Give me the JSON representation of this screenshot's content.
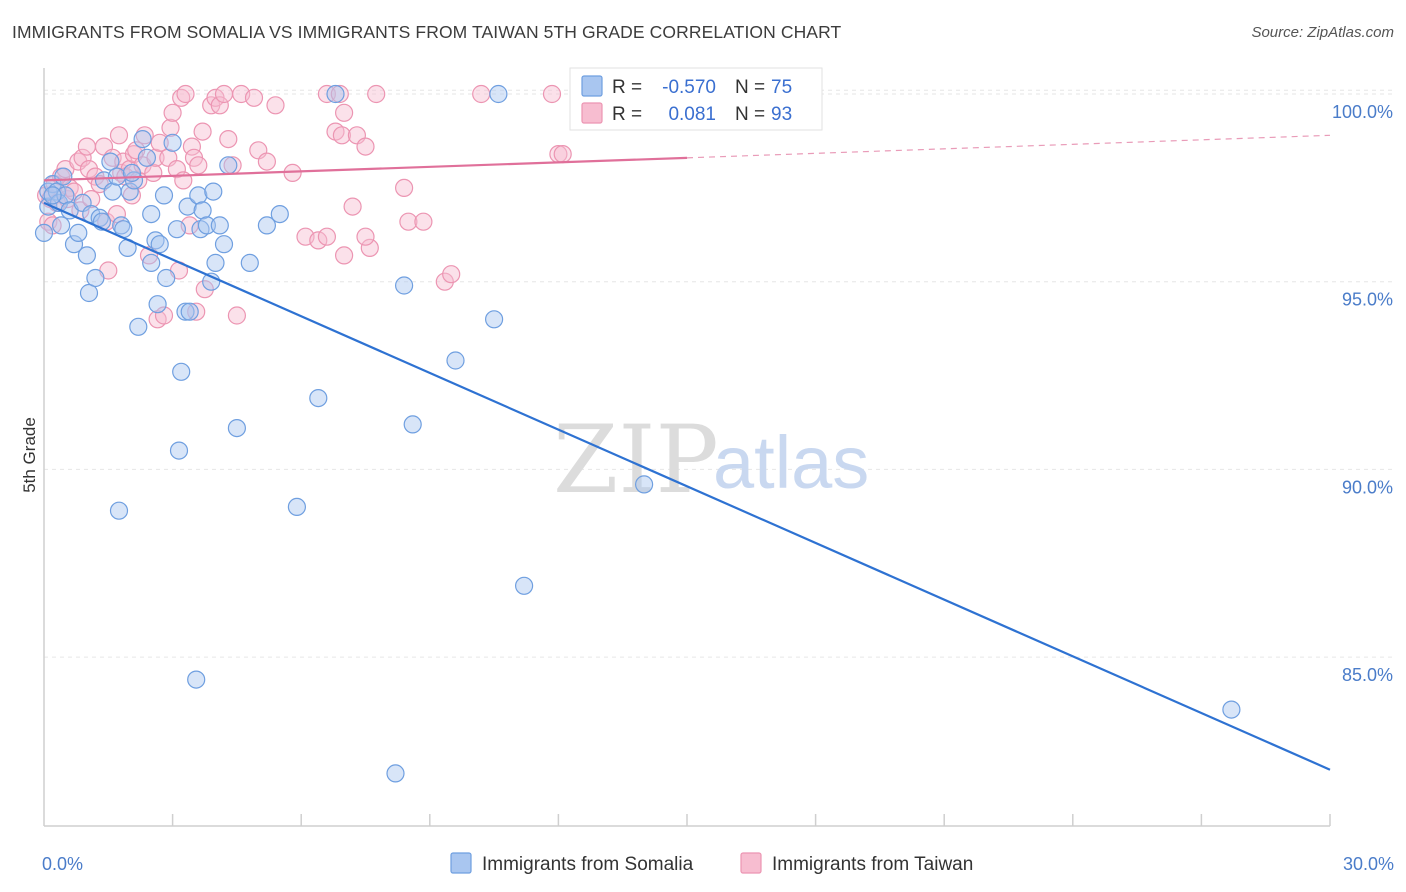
{
  "title": "IMMIGRANTS FROM SOMALIA VS IMMIGRANTS FROM TAIWAN 5TH GRADE CORRELATION CHART",
  "source": "Source: ZipAtlas.com",
  "watermark": {
    "part1": "ZIP",
    "part2": "atlas"
  },
  "stats": {
    "somalia": {
      "r_label": "R =",
      "r_value": "-0.570",
      "n_label": "N =",
      "n_value": "75"
    },
    "taiwan": {
      "r_label": "R =",
      "r_value": "0.081",
      "n_label": "N =",
      "n_value": "93"
    }
  },
  "legend": {
    "somalia": "Immigrants from Somalia",
    "taiwan": "Immigrants from Taiwan"
  },
  "colors": {
    "somalia_fill": "#a9c6f0",
    "somalia_stroke": "#6f9fe0",
    "somalia_line": "#2e72d2",
    "taiwan_fill": "#f7bdd0",
    "taiwan_stroke": "#ec95b2",
    "taiwan_line": "#e0709a",
    "tick_text": "#4a7cc9",
    "grid": "#e6e6e6"
  },
  "chart_data": {
    "type": "scatter",
    "xlabel": "",
    "ylabel": "5th Grade",
    "xlim": [
      0,
      30
    ],
    "ylim": [
      80.5,
      100.8
    ],
    "x_tick_labels": [
      {
        "x": 0,
        "label": "0.0%"
      },
      {
        "x": 30,
        "label": "30.0%"
      }
    ],
    "x_minor_ticks": [
      3,
      6,
      9,
      12,
      15,
      18,
      21,
      24,
      27,
      30
    ],
    "y_ticks": [
      {
        "y": 100,
        "label": "100.0%"
      },
      {
        "y": 95,
        "label": "95.0%"
      },
      {
        "y": 90,
        "label": "90.0%"
      },
      {
        "y": 85,
        "label": "85.0%"
      }
    ],
    "grid": true,
    "legend_position": "bottom-center",
    "series": [
      {
        "name": "Immigrants from Somalia",
        "trend": {
          "x0": 0,
          "y0": 97.1,
          "x1": 30,
          "y1": 82.0,
          "solid_until": 30
        },
        "points": [
          [
            0.0,
            96.3
          ],
          [
            0.1,
            97.0
          ],
          [
            0.1,
            97.4
          ],
          [
            0.2,
            97.6
          ],
          [
            0.3,
            97.4
          ],
          [
            0.35,
            97.1
          ],
          [
            0.4,
            96.5
          ],
          [
            0.45,
            97.8
          ],
          [
            0.5,
            97.3
          ],
          [
            0.6,
            96.9
          ],
          [
            0.7,
            96.0
          ],
          [
            0.8,
            96.3
          ],
          [
            0.9,
            97.1
          ],
          [
            1.0,
            95.7
          ],
          [
            1.05,
            94.7
          ],
          [
            1.1,
            96.8
          ],
          [
            1.2,
            95.1
          ],
          [
            1.3,
            96.7
          ],
          [
            1.4,
            97.7
          ],
          [
            1.55,
            98.2
          ],
          [
            1.6,
            97.4
          ],
          [
            1.7,
            97.8
          ],
          [
            1.75,
            88.9
          ],
          [
            1.8,
            96.5
          ],
          [
            1.85,
            96.4
          ],
          [
            1.95,
            95.9
          ],
          [
            2.0,
            97.4
          ],
          [
            2.1,
            97.7
          ],
          [
            2.2,
            93.8
          ],
          [
            2.3,
            98.8
          ],
          [
            2.4,
            98.3
          ],
          [
            2.5,
            95.5
          ],
          [
            2.5,
            96.8
          ],
          [
            2.6,
            96.1
          ],
          [
            2.65,
            94.4
          ],
          [
            2.7,
            96.0
          ],
          [
            2.8,
            97.3
          ],
          [
            2.85,
            95.1
          ],
          [
            3.0,
            98.7
          ],
          [
            3.1,
            96.4
          ],
          [
            3.15,
            90.5
          ],
          [
            3.2,
            92.6
          ],
          [
            3.3,
            94.2
          ],
          [
            3.35,
            97.0
          ],
          [
            3.4,
            94.2
          ],
          [
            3.55,
            84.4
          ],
          [
            3.6,
            97.3
          ],
          [
            3.65,
            96.4
          ],
          [
            3.7,
            96.9
          ],
          [
            3.8,
            96.5
          ],
          [
            3.9,
            95.0
          ],
          [
            3.95,
            97.4
          ],
          [
            4.0,
            95.5
          ],
          [
            4.1,
            96.5
          ],
          [
            4.2,
            96.0
          ],
          [
            4.3,
            98.1
          ],
          [
            4.5,
            91.1
          ],
          [
            4.8,
            95.5
          ],
          [
            5.2,
            96.5
          ],
          [
            5.5,
            96.8
          ],
          [
            5.9,
            89.0
          ],
          [
            6.4,
            91.9
          ],
          [
            6.8,
            100.0
          ],
          [
            8.2,
            81.9
          ],
          [
            8.4,
            94.9
          ],
          [
            8.6,
            91.2
          ],
          [
            9.6,
            92.9
          ],
          [
            10.5,
            94.0
          ],
          [
            10.6,
            100.0
          ],
          [
            11.2,
            86.9
          ],
          [
            14.0,
            89.6
          ],
          [
            27.7,
            83.6
          ],
          [
            0.2,
            97.3
          ],
          [
            1.35,
            96.6
          ],
          [
            2.05,
            97.9
          ]
        ]
      },
      {
        "name": "Immigrants from Taiwan",
        "trend": {
          "x0": 0,
          "y0": 97.7,
          "x1": 30,
          "y1": 98.9,
          "solid_until": 15
        },
        "points": [
          [
            0.05,
            97.3
          ],
          [
            0.1,
            96.6
          ],
          [
            0.15,
            97.2
          ],
          [
            0.2,
            96.5
          ],
          [
            0.25,
            97.6
          ],
          [
            0.3,
            97.1
          ],
          [
            0.4,
            97.8
          ],
          [
            0.5,
            98.0
          ],
          [
            0.55,
            97.2
          ],
          [
            0.6,
            97.5
          ],
          [
            0.7,
            97.4
          ],
          [
            0.8,
            98.2
          ],
          [
            0.85,
            96.9
          ],
          [
            0.9,
            98.3
          ],
          [
            1.0,
            98.6
          ],
          [
            1.05,
            98.0
          ],
          [
            1.1,
            97.2
          ],
          [
            1.2,
            97.8
          ],
          [
            1.3,
            97.6
          ],
          [
            1.4,
            98.6
          ],
          [
            1.45,
            96.6
          ],
          [
            1.5,
            95.3
          ],
          [
            1.6,
            98.3
          ],
          [
            1.7,
            96.8
          ],
          [
            1.75,
            98.9
          ],
          [
            1.8,
            97.9
          ],
          [
            1.85,
            98.2
          ],
          [
            1.9,
            97.8
          ],
          [
            2.0,
            98.0
          ],
          [
            2.05,
            97.3
          ],
          [
            2.1,
            98.4
          ],
          [
            2.15,
            98.5
          ],
          [
            2.2,
            97.7
          ],
          [
            2.3,
            98.1
          ],
          [
            2.35,
            98.9
          ],
          [
            2.45,
            95.7
          ],
          [
            2.55,
            97.9
          ],
          [
            2.6,
            98.3
          ],
          [
            2.65,
            94.0
          ],
          [
            2.7,
            98.7
          ],
          [
            2.8,
            94.1
          ],
          [
            2.9,
            98.3
          ],
          [
            2.95,
            99.1
          ],
          [
            3.0,
            99.5
          ],
          [
            3.1,
            98.0
          ],
          [
            3.15,
            95.3
          ],
          [
            3.2,
            99.9
          ],
          [
            3.25,
            97.7
          ],
          [
            3.3,
            100.0
          ],
          [
            3.4,
            96.5
          ],
          [
            3.45,
            98.6
          ],
          [
            3.5,
            98.3
          ],
          [
            3.55,
            94.2
          ],
          [
            3.6,
            98.1
          ],
          [
            3.7,
            99.0
          ],
          [
            3.75,
            94.8
          ],
          [
            3.9,
            99.7
          ],
          [
            4.0,
            99.9
          ],
          [
            4.1,
            99.7
          ],
          [
            4.2,
            100.0
          ],
          [
            4.3,
            98.8
          ],
          [
            4.4,
            98.1
          ],
          [
            4.5,
            94.1
          ],
          [
            4.6,
            100.0
          ],
          [
            4.9,
            99.9
          ],
          [
            5.0,
            98.5
          ],
          [
            5.2,
            98.2
          ],
          [
            5.4,
            99.7
          ],
          [
            5.8,
            97.9
          ],
          [
            6.1,
            96.2
          ],
          [
            6.4,
            96.1
          ],
          [
            6.6,
            96.2
          ],
          [
            6.8,
            99.0
          ],
          [
            6.95,
            98.9
          ],
          [
            7.0,
            99.5
          ],
          [
            7.3,
            98.9
          ],
          [
            7.6,
            95.9
          ],
          [
            7.75,
            100.0
          ],
          [
            7.5,
            98.6
          ],
          [
            7.2,
            97.0
          ],
          [
            7.0,
            95.7
          ],
          [
            7.5,
            96.2
          ],
          [
            8.4,
            97.5
          ],
          [
            8.5,
            96.6
          ],
          [
            8.85,
            96.6
          ],
          [
            9.35,
            95.0
          ],
          [
            9.5,
            95.2
          ],
          [
            10.2,
            100.0
          ],
          [
            11.85,
            100.0
          ],
          [
            12.0,
            98.4
          ],
          [
            12.1,
            98.4
          ],
          [
            6.6,
            100.0
          ],
          [
            6.9,
            100.0
          ]
        ]
      }
    ]
  }
}
